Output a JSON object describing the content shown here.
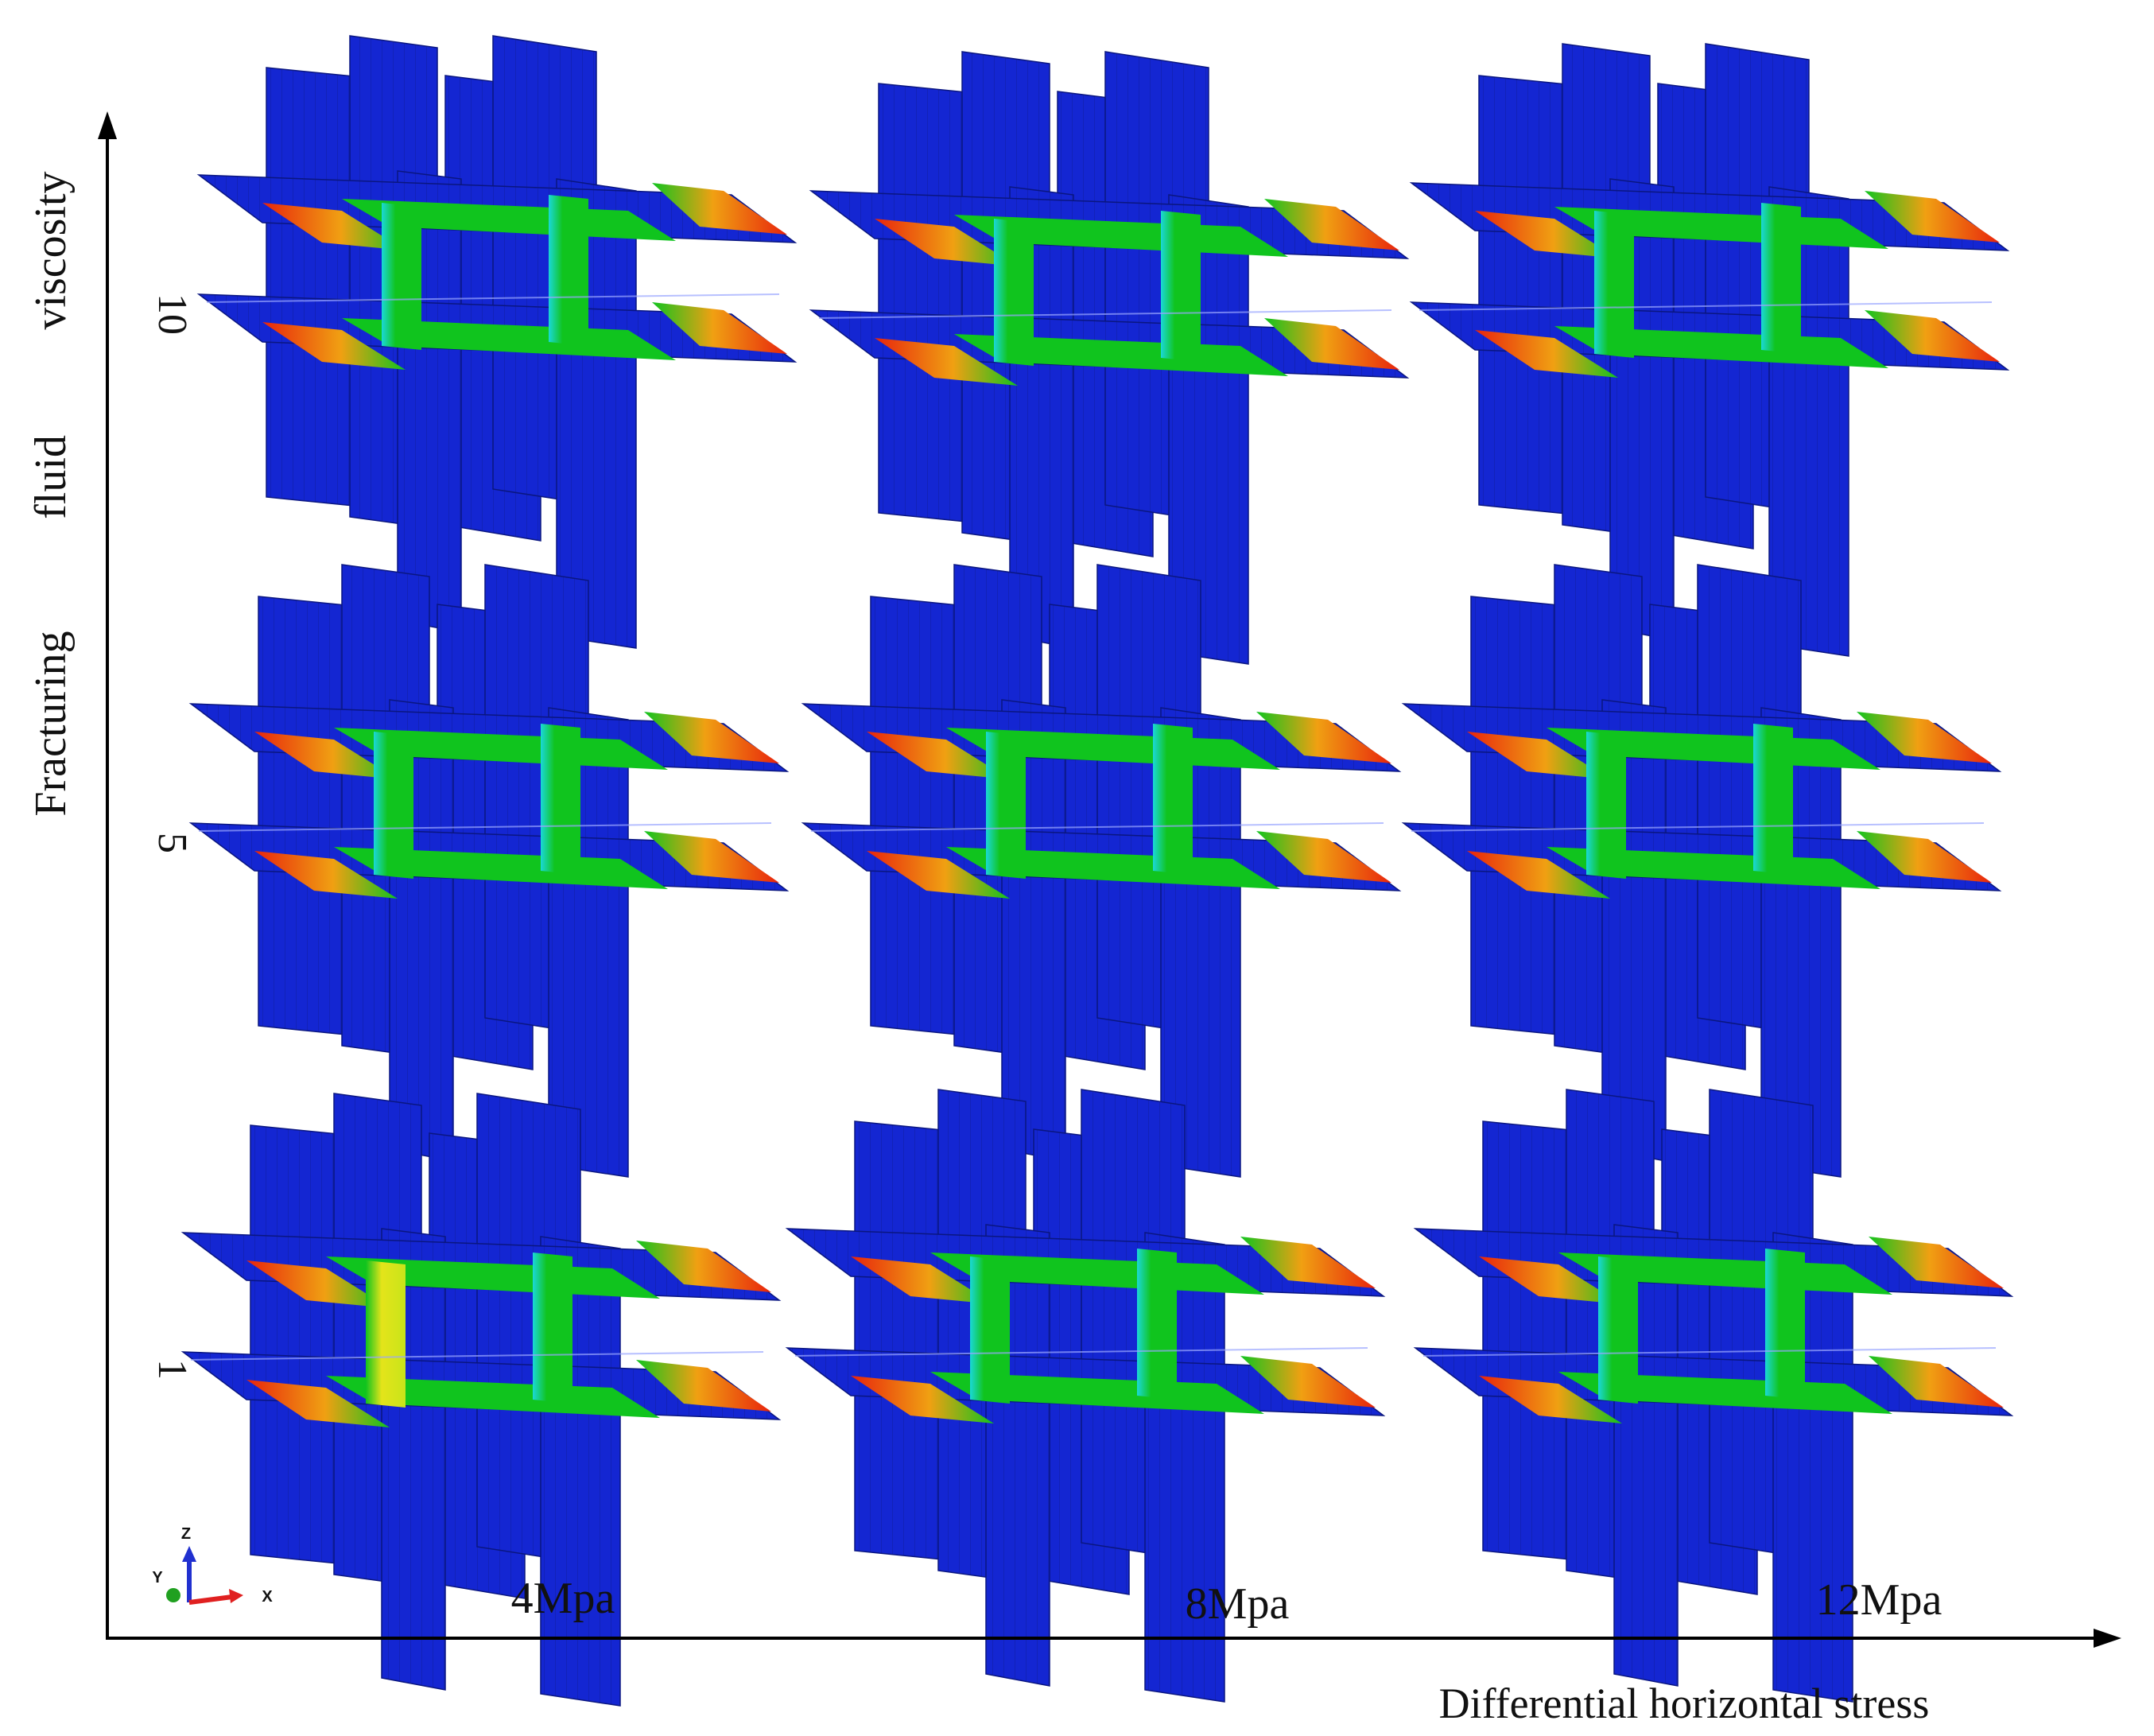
{
  "figure": {
    "y_axis_label": [
      "Fracturing",
      "fluid",
      "viscosity"
    ],
    "x_axis_label": "Differential horizontal stress",
    "row_labels": [
      "10",
      "5",
      "1"
    ],
    "column_labels": [
      "4Mpa",
      "8Mpa",
      "12Mpa"
    ],
    "triad": {
      "x": "X",
      "y": "Y",
      "z": "Z"
    }
  },
  "colors": {
    "plane_blue": "#1426d2",
    "grid_line": "#0a1680",
    "fracture_green": "#10c41e",
    "fracture_cyan": "#1ad8d8",
    "fracture_yellow": "#e4e41a",
    "tip_red": "#e8240c",
    "tip_orange": "#f0a012",
    "axis": "#000000",
    "triad_x": "#e02020",
    "triad_y": "#20a020",
    "triad_z": "#2030d0"
  },
  "panels": [
    {
      "row": "10",
      "column": "4Mpa",
      "mid_band": "#10c41e"
    },
    {
      "row": "10",
      "column": "8Mpa",
      "mid_band": "#10c41e"
    },
    {
      "row": "10",
      "column": "12Mpa",
      "mid_band": "#10c41e"
    },
    {
      "row": "5",
      "column": "4Mpa",
      "mid_band": "#10c41e"
    },
    {
      "row": "5",
      "column": "8Mpa",
      "mid_band": "#10c41e"
    },
    {
      "row": "5",
      "column": "12Mpa",
      "mid_band": "#10c41e"
    },
    {
      "row": "1",
      "column": "4Mpa",
      "mid_band": "#e4e41a"
    },
    {
      "row": "1",
      "column": "8Mpa",
      "mid_band": "#10c41e"
    },
    {
      "row": "1",
      "column": "12Mpa",
      "mid_band": "#10c41e"
    }
  ]
}
